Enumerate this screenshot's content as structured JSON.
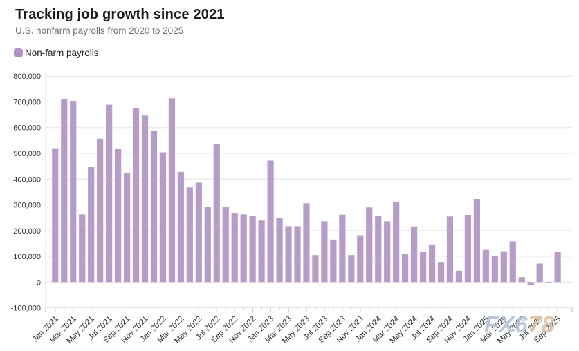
{
  "header": {
    "title": "Tracking job growth since 2021",
    "subtitle": "U.S. nonfarm payrolls from 2020 to 2025"
  },
  "legend": {
    "label": "Non-farm payrolls",
    "swatch_color": "#b292c4"
  },
  "watermark": {
    "text": "FX678",
    "part_blue": "FX6",
    "part_tan": "78",
    "color_blue": "#b3c0dd",
    "color_tan": "#dfc1a2"
  },
  "chart_data": {
    "type": "bar",
    "title": "Tracking job growth since 2021",
    "subtitle": "U.S. nonfarm payrolls from 2020 to 2025",
    "series_name": "Non-farm payrolls",
    "bar_color": "#b79cc9",
    "grid": true,
    "gridline_color": "#e5e5e5",
    "axis_line_color": "#dedede",
    "tick_color": "#b5b5b5",
    "label_color": "#333333",
    "legend_position": "top-left",
    "ylim": [
      -100000,
      800000
    ],
    "y_tick_step": 100000,
    "x_label_every": 2,
    "categories": [
      "Jan 2021",
      "Feb 2021",
      "Mar 2021",
      "Apr 2021",
      "May 2021",
      "Jun 2021",
      "Jul 2021",
      "Aug 2021",
      "Sep 2021",
      "Oct 2021",
      "Nov 2021",
      "Dec 2021",
      "Jan 2022",
      "Feb 2022",
      "Mar 2022",
      "Apr 2022",
      "May 2022",
      "Jun 2022",
      "Jul 2022",
      "Aug 2022",
      "Sep 2022",
      "Oct 2022",
      "Nov 2022",
      "Dec 2022",
      "Jan 2023",
      "Feb 2023",
      "Mar 2023",
      "Apr 2023",
      "May 2023",
      "Jun 2023",
      "Jul 2023",
      "Aug 2023",
      "Sep 2023",
      "Oct 2023",
      "Nov 2023",
      "Dec 2023",
      "Jan 2024",
      "Feb 2024",
      "Mar 2024",
      "Apr 2024",
      "May 2024",
      "Jun 2024",
      "Jul 2024",
      "Aug 2024",
      "Sep 2024",
      "Oct 2024",
      "Nov 2024",
      "Dec 2024",
      "Jan 2025",
      "Feb 2025",
      "Mar 2025",
      "Apr 2025",
      "May 2025",
      "Jun 2025",
      "Jul 2025",
      "Aug 2025",
      "Sep 2025"
    ],
    "values": [
      520000,
      710000,
      704000,
      263000,
      447000,
      557000,
      689000,
      517000,
      424000,
      677000,
      647000,
      588000,
      504000,
      714000,
      428000,
      368000,
      386000,
      293000,
      537000,
      292000,
      269000,
      263000,
      256000,
      239000,
      472000,
      248000,
      217000,
      217000,
      306000,
      105000,
      236000,
      165000,
      262000,
      105000,
      182000,
      290000,
      256000,
      236000,
      310000,
      108000,
      216000,
      118000,
      144000,
      78000,
      255000,
      44000,
      261000,
      323000,
      125000,
      102000,
      120000,
      158000,
      19000,
      -13000,
      72000,
      -4000,
      119000
    ]
  }
}
